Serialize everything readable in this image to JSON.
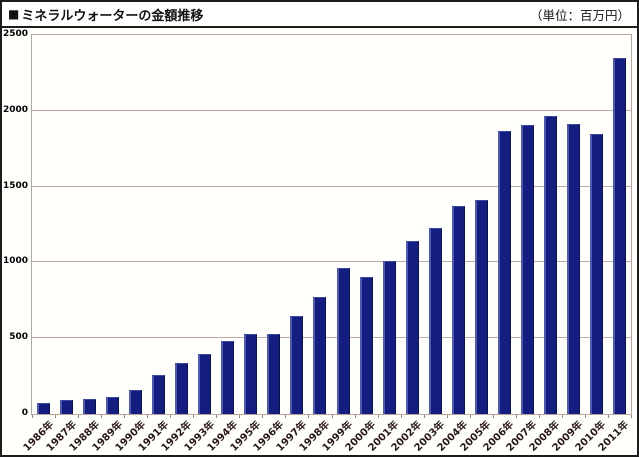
{
  "header": {
    "title": "ミネラルウォーターの金額推移",
    "unit_label": "（単位：百万円）"
  },
  "icons": {
    "title_bullet": "■"
  },
  "colors": {
    "bar_fill": "#141d80",
    "bar_highlight": "#4c59b5",
    "bar_shadow": "#0a1158",
    "gridline": "#bcaaa2",
    "plot_border": "#b9a59d",
    "frame_border": "#1c1c1c",
    "x_label_text": "#2a1813",
    "y_label_text": "#000000"
  },
  "chart_data": {
    "type": "bar",
    "title": "ミネラルウォーターの金額推移",
    "unit": "百万円",
    "xlabel": "",
    "ylabel": "",
    "ylim": [
      0,
      2500
    ],
    "yticks": [
      0,
      500,
      1000,
      1500,
      2000,
      2500
    ],
    "grid": true,
    "legend": false,
    "categories": [
      "1986年",
      "1987年",
      "1988年",
      "1989年",
      "1990年",
      "1991年",
      "1992年",
      "1993年",
      "1994年",
      "1995年",
      "1996年",
      "1997年",
      "1998年",
      "1999年",
      "2000年",
      "2001年",
      "2002年",
      "2003年",
      "2004年",
      "2005年",
      "2006年",
      "2007年",
      "2008年",
      "2009年",
      "2010年",
      "2011年"
    ],
    "values": [
      75,
      90,
      100,
      110,
      160,
      255,
      335,
      395,
      480,
      530,
      525,
      645,
      770,
      965,
      905,
      1010,
      1140,
      1230,
      1370,
      1410,
      1865,
      1905,
      1965,
      1910,
      1850,
      2350
    ]
  }
}
